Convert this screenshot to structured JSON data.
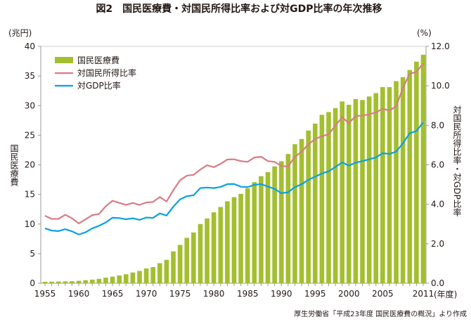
{
  "chart_data": {
    "type": "bar+line",
    "title": "図2　国民医療費・対国民所得比率および対GDP比率の年次推移",
    "left_unit": "(兆円)",
    "right_unit": "(%)",
    "x_unit": "(年度)",
    "ylabel_left": "国民医療費",
    "ylabel_right": "対国民所得比率・対GDP比率",
    "ylim_left": [
      0,
      40
    ],
    "ylim_right": [
      0,
      12
    ],
    "yticks_left": [
      "0",
      "5",
      "10",
      "15",
      "20",
      "25",
      "30",
      "35",
      "40"
    ],
    "yticks_right": [
      "0.0",
      "2.0",
      "4.0",
      "6.0",
      "8.0",
      "10.0",
      "12.0"
    ],
    "xtick_labels": [
      "1955",
      "1960",
      "1965",
      "1970",
      "1975",
      "1980",
      "1985",
      "1990",
      "1995",
      "2000",
      "2005",
      "2011"
    ],
    "x": [
      1955,
      1956,
      1957,
      1958,
      1959,
      1960,
      1961,
      1962,
      1963,
      1964,
      1965,
      1966,
      1967,
      1968,
      1969,
      1970,
      1971,
      1972,
      1973,
      1974,
      1975,
      1976,
      1977,
      1978,
      1979,
      1980,
      1981,
      1982,
      1983,
      1984,
      1985,
      1986,
      1987,
      1988,
      1989,
      1990,
      1991,
      1992,
      1993,
      1994,
      1995,
      1996,
      1997,
      1998,
      1999,
      2000,
      2001,
      2002,
      2003,
      2004,
      2005,
      2006,
      2007,
      2008,
      2009,
      2010,
      2011
    ],
    "legend_position": "top-left",
    "series": [
      {
        "name": "国民医療費",
        "type": "bar",
        "axis": "left",
        "color": "#a3bf2f",
        "values": [
          0.24,
          0.26,
          0.29,
          0.32,
          0.35,
          0.41,
          0.51,
          0.61,
          0.74,
          0.94,
          1.12,
          1.31,
          1.52,
          1.81,
          2.08,
          2.5,
          2.73,
          3.39,
          3.96,
          5.38,
          6.48,
          7.67,
          8.57,
          10.0,
          10.95,
          11.98,
          12.87,
          13.84,
          14.54,
          15.09,
          16.02,
          17.07,
          18.08,
          18.76,
          19.73,
          20.61,
          21.83,
          23.48,
          24.36,
          25.79,
          26.96,
          28.45,
          28.91,
          29.58,
          30.7,
          30.14,
          31.1,
          30.95,
          31.54,
          32.11,
          33.13,
          33.12,
          34.14,
          34.81,
          36.01,
          37.42,
          38.59
        ]
      },
      {
        "name": "対国民所得比率",
        "type": "line",
        "axis": "right",
        "color": "#d97b86",
        "values": [
          3.42,
          3.26,
          3.26,
          3.47,
          3.29,
          3.03,
          3.24,
          3.45,
          3.51,
          3.9,
          4.18,
          4.07,
          3.97,
          4.07,
          3.97,
          4.09,
          4.12,
          4.37,
          4.14,
          4.71,
          5.22,
          5.45,
          5.49,
          5.76,
          5.98,
          5.88,
          6.05,
          6.27,
          6.28,
          6.19,
          6.15,
          6.37,
          6.41,
          6.19,
          6.15,
          5.94,
          5.92,
          6.41,
          6.66,
          7.04,
          7.31,
          7.45,
          7.55,
          7.99,
          8.41,
          8.11,
          8.48,
          8.49,
          8.56,
          8.65,
          8.84,
          8.75,
          8.97,
          9.9,
          10.61,
          10.71,
          11.13
        ]
      },
      {
        "name": "対GDP比率",
        "type": "line",
        "axis": "right",
        "color": "#0aa0e0",
        "values": [
          2.78,
          2.67,
          2.64,
          2.74,
          2.63,
          2.47,
          2.58,
          2.78,
          2.91,
          3.08,
          3.32,
          3.3,
          3.24,
          3.29,
          3.21,
          3.33,
          3.31,
          3.54,
          3.43,
          3.88,
          4.25,
          4.41,
          4.46,
          4.82,
          4.85,
          4.82,
          4.88,
          5.02,
          5.03,
          4.89,
          4.87,
          4.99,
          5.02,
          4.9,
          4.78,
          4.56,
          4.61,
          4.87,
          5.02,
          5.24,
          5.4,
          5.56,
          5.67,
          5.89,
          6.12,
          5.96,
          6.11,
          6.19,
          6.28,
          6.37,
          6.59,
          6.55,
          6.67,
          7.09,
          7.6,
          7.71,
          8.15
        ]
      }
    ],
    "source": "厚生労働省「平成23年度 国民医療費の概況」より作成"
  }
}
